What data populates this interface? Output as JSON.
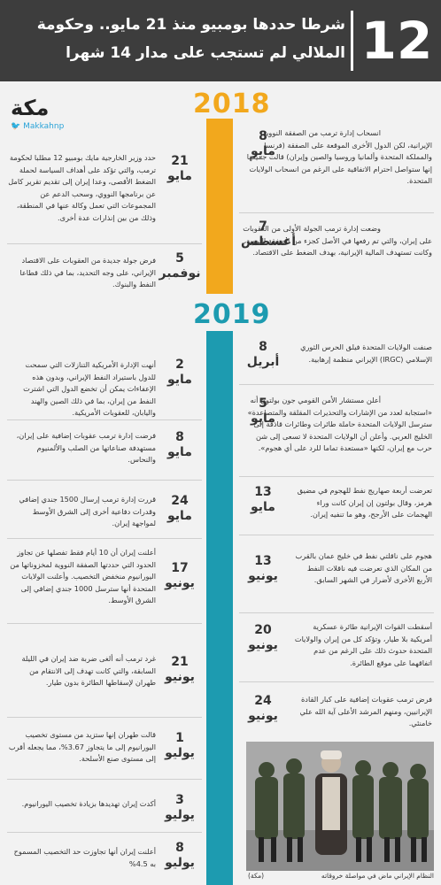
{
  "header": {
    "number": "12",
    "title_line1": "شرطا حددها بومبيو منذ 21 مايو.. وحكومة",
    "title_line2": "الملالي لم تستجب على مدار 14 شهرا"
  },
  "logo": {
    "name": "مكة",
    "handle": "Makkahnp"
  },
  "years": {
    "y2018": "2018",
    "y2019": "2019"
  },
  "colors": {
    "accent_2018": "#f2a81d",
    "accent_2019": "#1d9bb0",
    "header_bg": "#3d3d3d"
  },
  "events": [
    {
      "day": "8",
      "month": "مايو",
      "text": "انسحاب إدارة ترمب من الصفقة النووية الإيرانية، لكن الدول الأخرى الموقعة على الصفقة (فرنسا والمملكة المتحدة وألمانيا وروسيا والصين وإيران) قالت جميعها إنها ستواصل احترام الاتفاقية على الرغم من انسحاب الولايات المتحدة."
    },
    {
      "day": "21",
      "month": "مايو",
      "text": "حدد وزير الخارجية مايك بومبيو 12 مطلبا لحكومة ترمب، والتي تؤكد على أهداف السياسة لحملة الضغط الأقصى، وعدا إيران إلى تقديم تقرير كامل عن برنامجها النووي، وسحب الدعم عن المجموعات التي تعمل وكالة عنها في المنطقة، وذلك من بين إنذارات عدة أخرى."
    },
    {
      "day": "7",
      "month": "أغسطس",
      "text": "وضعت إدارة ترمب الجولة الأولى من العقوبات على إيران، والتي تم رفعها في الأصل كجزء من الصفقة النووية، وكانت تستهدف المالية الإيرانية، بهدف الضغط على الاقتصاد."
    },
    {
      "day": "5",
      "month": "نوفمبر",
      "text": "فرض جولة جديدة من العقوبات على الاقتصاد الإيراني، على وجه التحديد، بما في ذلك قطاعا النفط والبنوك."
    },
    {
      "day": "8",
      "month": "أبريل",
      "text": "صنفت الولايات المتحدة فيلق الحرس الثوري الإسلامي (IRGC) الإيراني منظمة إرهابية."
    },
    {
      "day": "2",
      "month": "مايو",
      "text": "أنهت الإدارة الأمريكية التنازلات التي سمحت للدول باستيراد النفط الإيراني، وبدون هذه الإعفاءات يمكن أن تخضع الدول التي اشترت النفط من إيران، بما في ذلك الصين والهند واليابان، للعقوبات الأمريكية."
    },
    {
      "day": "5",
      "month": "مايو",
      "text": "أعلن مستشار الأمن القومي جون بولتون أنه «استجابة لعدد من الإشارات والتحذيرات المقلقة والمتصاعدة» سترسل الولايات المتحدة حاملة طائرات وطائرات قاذفة إلى الخليج العربي. وأعلن أن الولايات المتحدة لا تسعى إلى شن حرب مع إيران، لكنها «مستعدة تماما للرد على أي هجوم»."
    },
    {
      "day": "8",
      "month": "مايو",
      "text": "فرضت إدارة ترمب عقوبات إضافية على إيران، مستهدفة صناعاتها من الصلب والألمنيوم والنحاس."
    },
    {
      "day": "13",
      "month": "مايو",
      "text": "تعرضت أربعة صهاريج نفط للهجوم في مضيق هرمز، وقال بولتون إن إيران كانت وراء الهجمات على الأرجح، وهو ما تنفيه إيران."
    },
    {
      "day": "24",
      "month": "مايو",
      "text": "قررت إدارة ترمب إرسال 1500 جندي إضافي وقدرات دفاعية أخرى إلى الشرق الأوسط لمواجهة إيران."
    },
    {
      "day": "13",
      "month": "يونيو",
      "text": "هجوم على ناقلتي نفط في خليج عمان بالقرب من المكان الذي تعرضت فيه ناقلات النفط الأربع الأخرى لأضرار في الشهر السابق."
    },
    {
      "day": "17",
      "month": "يونيو",
      "text": "أعلنت إيران أن 10 أيام فقط تفصلها عن تجاوز الحدود التي حددتها الصفقة النووية لمخزوناتها من اليورانيوم منخفض التخصيب. وأعلنت الولايات المتحدة أنها سترسل 1000 جندي إضافي إلى الشرق الأوسط."
    },
    {
      "day": "20",
      "month": "يونيو",
      "text": "أسقطت القوات الإيرانية طائرة عسكرية أمريكية بلا طيار، وتؤكد كل من إيران والولايات المتحدة حدوث ذلك على الرغم من عدم اتفاقهما على موقع الطائرة."
    },
    {
      "day": "21",
      "month": "يونيو",
      "text": "غرد ترمب أنه ألغى ضربة ضد إيران في الليلة السابقة، والتي كانت تهدف إلى الانتقام من طهران لإسقاطها الطائرة بدون طيار."
    },
    {
      "day": "24",
      "month": "يونيو",
      "text": "فرض ترمب عقوبات إضافية على كبار القادة الإيرانيين، ومنهم المرشد الأعلى آية الله علي خامنئي."
    },
    {
      "day": "1",
      "month": "يوليو",
      "text": "قالت طهران إنها ستزيد من مستوى تخصيب اليورانيوم إلى ما يتجاوز 3.67%، مما يجعله أقرب إلى مستوى صنع الأسلحة."
    },
    {
      "day": "3",
      "month": "يوليو",
      "text": "أكدت إيران تهديدها بزيادة تخصيب اليورانيوم."
    },
    {
      "day": "8",
      "month": "يوليو",
      "text": "أعلنت إيران أنها تجاوزت حد التخصيب المسموح به 4.5%"
    }
  ],
  "photo": {
    "caption": "النظام الإيراني ماض في مواصلة خروقاته",
    "source": "(مكة)"
  }
}
